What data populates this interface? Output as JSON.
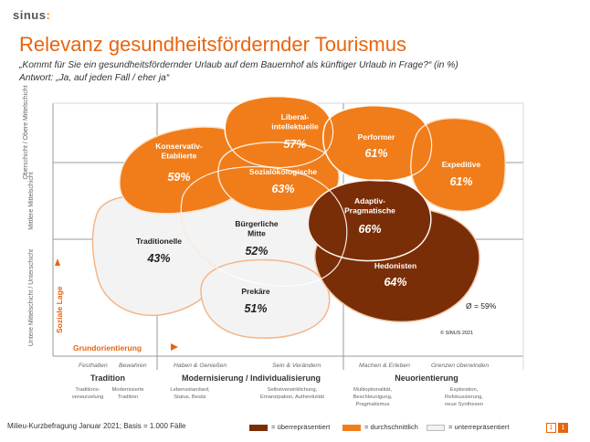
{
  "brand": {
    "name": "sinus",
    "dot": ":"
  },
  "title": "Relevanz gesundheitsfördernder Tourismus",
  "question": "„Kommt für Sie ein gesundheitsfördernder Urlaub auf dem Bauernhof als künftiger Urlaub in Frage?“ (in %)",
  "answer": "Antwort: „Ja, auf jeden Fall / eher ja“",
  "colors": {
    "over": "#7a2e07",
    "avg": "#f07d1a",
    "under": "#f2f2f2",
    "accent": "#e8640e"
  },
  "axis_y": {
    "label": "Soziale Lage",
    "rows": [
      "Oberschicht / Obere Mittelschicht",
      "Mittlere Mittelschicht",
      "Untere Mittelschicht / Unterschicht"
    ]
  },
  "axis_x": {
    "label": "Grundorientierung",
    "cols": [
      {
        "sub_left": "Festhalten",
        "sub_right": "Bewahren",
        "name": "Tradition",
        "desc_left": "Traditions-\nverwurzelung",
        "desc_right": "Modernisierte\nTradition"
      },
      {
        "sub_left": "Haben & Genießen",
        "sub_right": "Sein & Verändern",
        "name": "Modernisierung / Individualisierung",
        "desc_left": "Lebensstandard,\nStatus, Besitz",
        "desc_right": "Selbstverwirklichung,\nEmanzipation, Authentizität"
      },
      {
        "sub_left": "Machen & Erleben",
        "sub_right": "Grenzen überwinden",
        "name": "Neuorientierung",
        "desc_left": "Multioptionalität,\nBeschleunigung,\nPragmatismus",
        "desc_right": "Exploration,\nRefokussierung,\nneue Synthesen"
      }
    ]
  },
  "milieus": [
    {
      "name": "Konservativ-\nEtablierte",
      "value": "59%",
      "level": "avg"
    },
    {
      "name": "Liberal-\nintellektuelle",
      "value": "57%",
      "level": "avg"
    },
    {
      "name": "Performer",
      "value": "61%",
      "level": "avg"
    },
    {
      "name": "Expeditive",
      "value": "61%",
      "level": "avg"
    },
    {
      "name": "Sozialökologische",
      "value": "63%",
      "level": "avg"
    },
    {
      "name": "Adaptiv-\nPragmatische",
      "value": "66%",
      "level": "over"
    },
    {
      "name": "Traditionelle",
      "value": "43%",
      "level": "under"
    },
    {
      "name": "Bürgerliche\nMitte",
      "value": "52%",
      "level": "under"
    },
    {
      "name": "Hedonisten",
      "value": "64%",
      "level": "over"
    },
    {
      "name": "Prekäre",
      "value": "51%",
      "level": "under"
    }
  ],
  "average": "Ø = 59%",
  "copyright": "© SINUS 2021",
  "source": "Milieu-Kurzbefragung Januar 2021; Basis = 1.000 Fälle",
  "legend": [
    {
      "label": "= überrepräsentiert",
      "color": "#7a2e07"
    },
    {
      "label": "= durchschnittlich",
      "color": "#f07d1a"
    },
    {
      "label": "= unterrepräsentiert",
      "color": "#f2f2f2"
    }
  ],
  "pager": [
    "1",
    "1"
  ]
}
